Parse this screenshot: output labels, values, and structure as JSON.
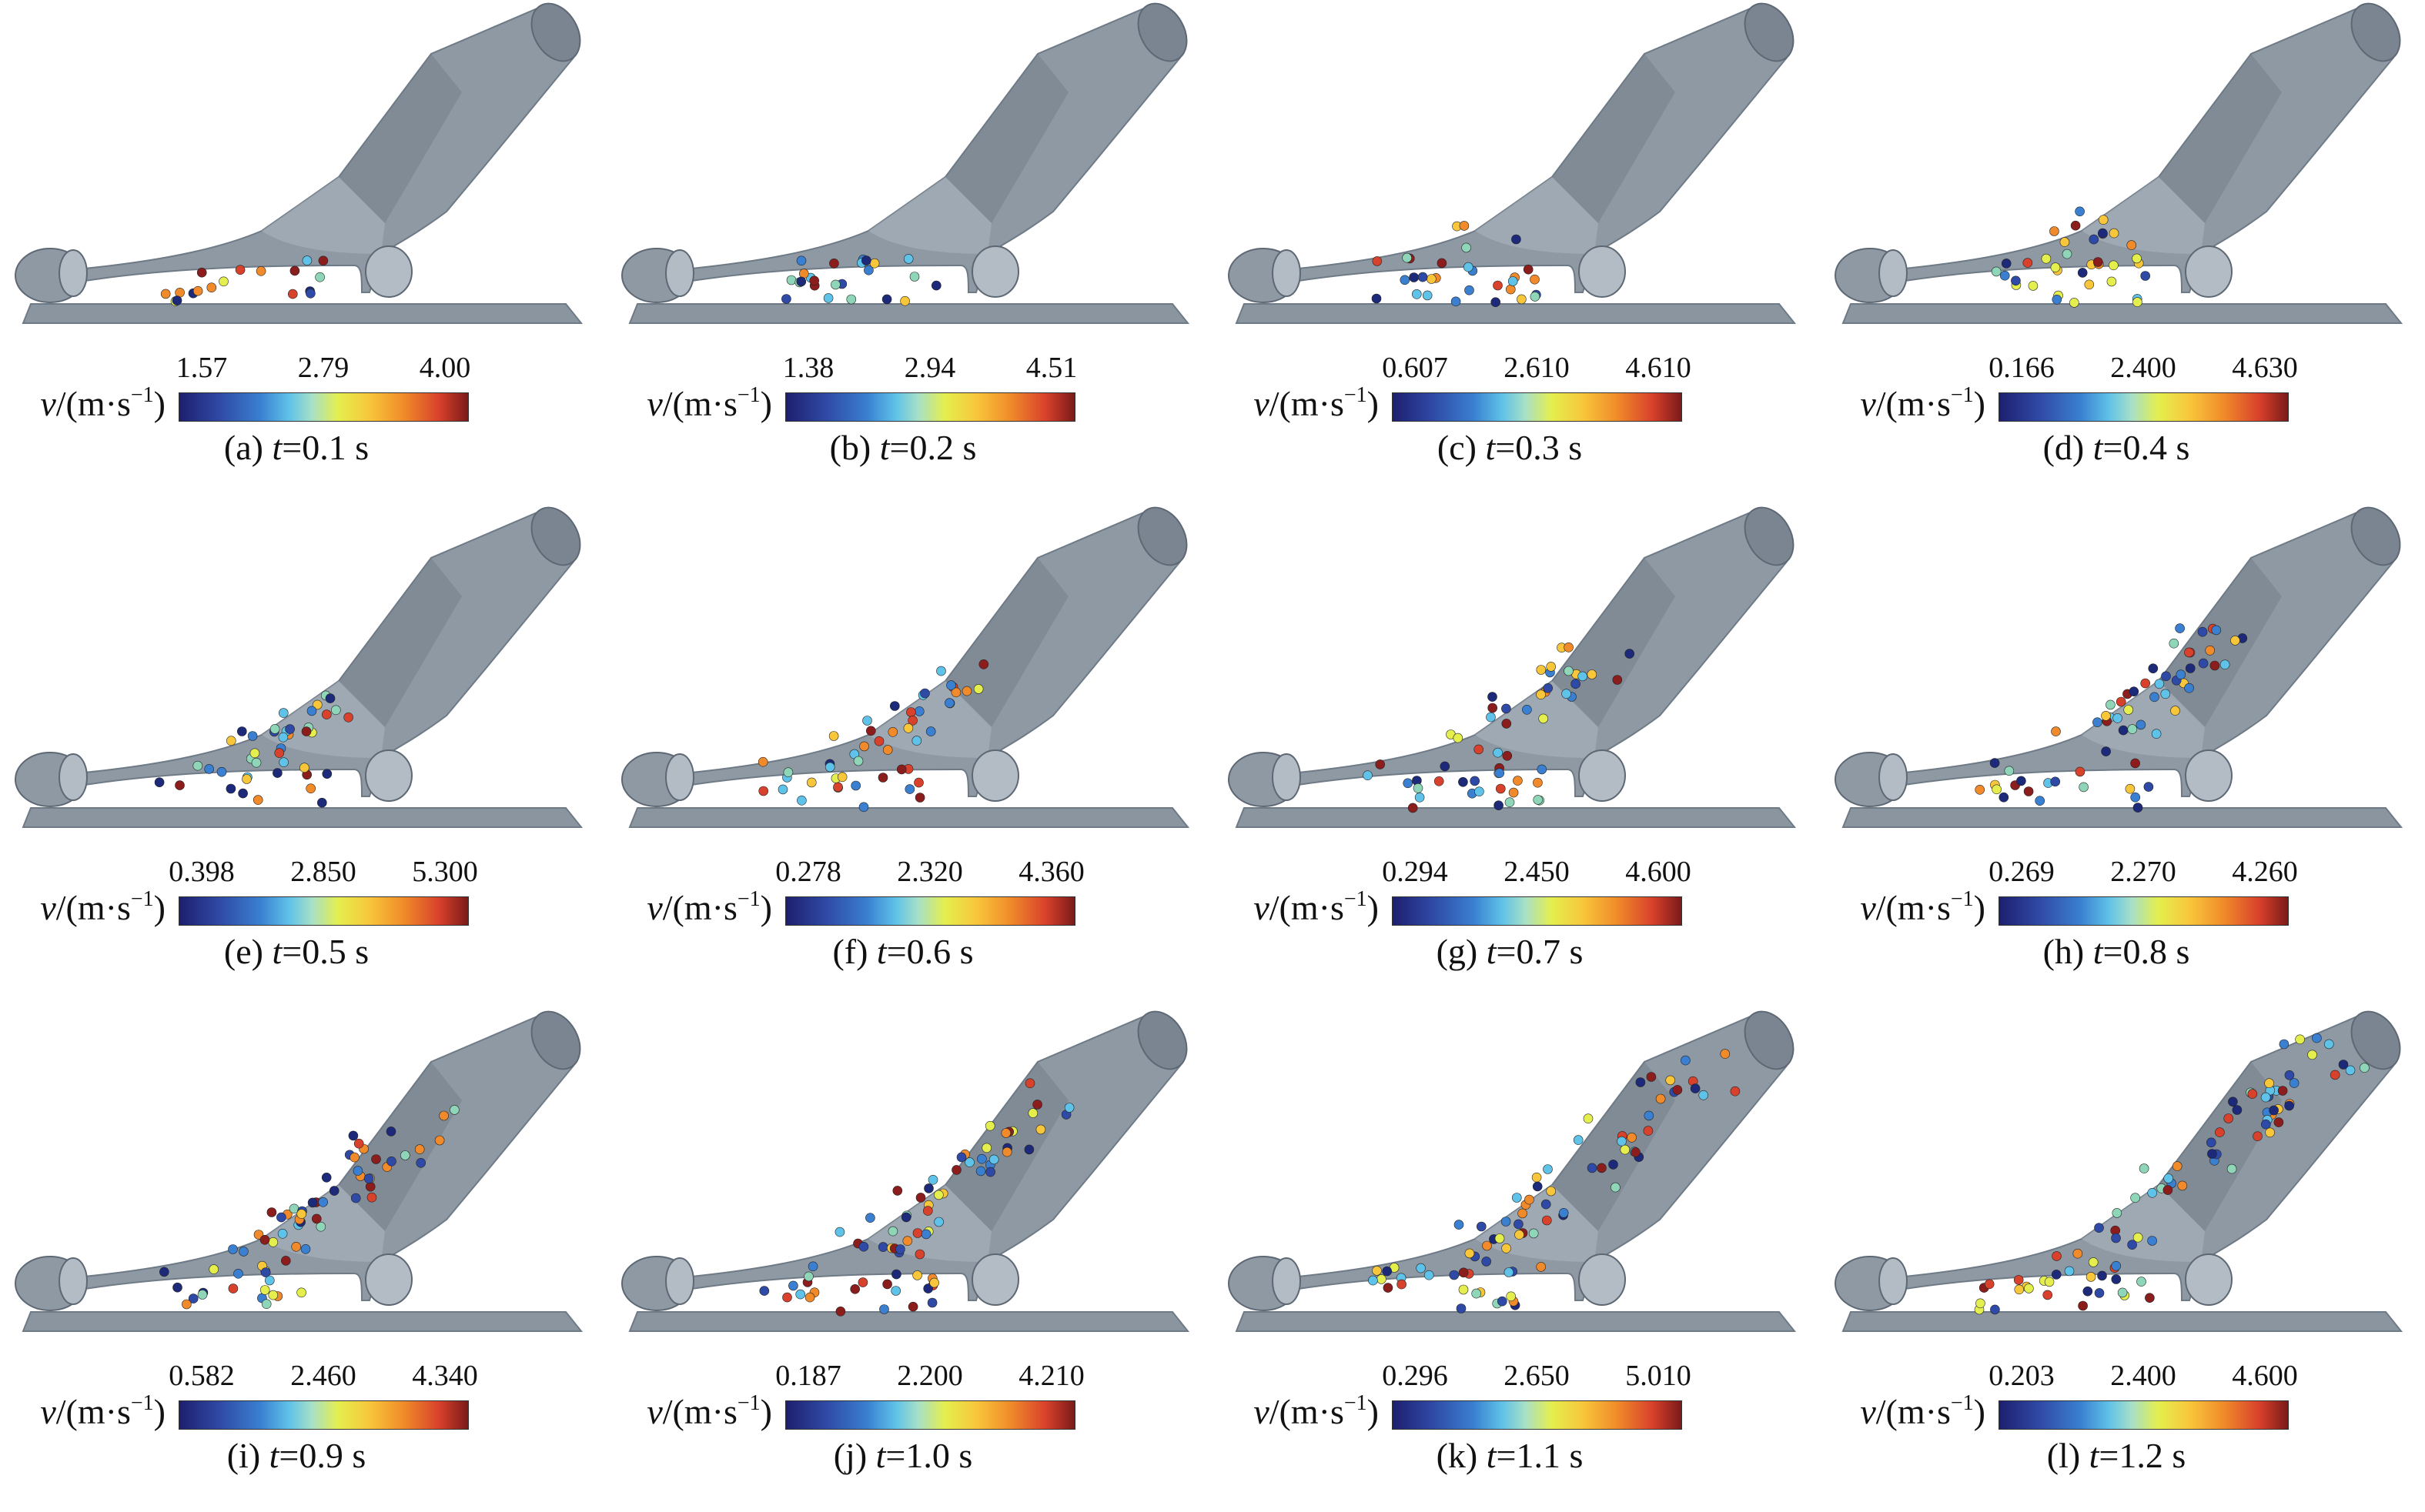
{
  "colorbar": {
    "variable": "v",
    "unit_open": "/(m·s",
    "unit_exp": "−1",
    "unit_close": ")",
    "gradient_colors": [
      "#1d1f6e",
      "#2f4aa6",
      "#3a7fd0",
      "#5fc2e8",
      "#a7e0c6",
      "#e4ef4e",
      "#f8c63a",
      "#f08a2a",
      "#d8412b",
      "#7a1a1a"
    ]
  },
  "panels": [
    {
      "letter": "(a)",
      "t_value": "=0.1 s",
      "ticks": [
        "1.57",
        "2.79",
        "4.00"
      ]
    },
    {
      "letter": "(b)",
      "t_value": "=0.2 s",
      "ticks": [
        "1.38",
        "2.94",
        "4.51"
      ]
    },
    {
      "letter": "(c)",
      "t_value": "=0.3 s",
      "ticks": [
        "0.607",
        "2.610",
        "4.610"
      ]
    },
    {
      "letter": "(d)",
      "t_value": "=0.4 s",
      "ticks": [
        "0.166",
        "2.400",
        "4.630"
      ]
    },
    {
      "letter": "(e)",
      "t_value": "=0.5 s",
      "ticks": [
        "0.398",
        "2.850",
        "5.300"
      ]
    },
    {
      "letter": "(f)",
      "t_value": "=0.6 s",
      "ticks": [
        "0.278",
        "2.320",
        "4.360"
      ]
    },
    {
      "letter": "(g)",
      "t_value": "=0.7 s",
      "ticks": [
        "0.294",
        "2.450",
        "4.600"
      ]
    },
    {
      "letter": "(h)",
      "t_value": "=0.8 s",
      "ticks": [
        "0.269",
        "2.270",
        "4.260"
      ]
    },
    {
      "letter": "(i)",
      "t_value": "=0.9 s",
      "ticks": [
        "0.582",
        "2.460",
        "4.340"
      ]
    },
    {
      "letter": "(j)",
      "t_value": "=1.0 s",
      "ticks": [
        "0.187",
        "2.200",
        "4.210"
      ]
    },
    {
      "letter": "(k)",
      "t_value": "=1.1 s",
      "ticks": [
        "0.296",
        "2.650",
        "5.010"
      ]
    },
    {
      "letter": "(l)",
      "t_value": "=1.2 s",
      "ticks": [
        "0.203",
        "2.400",
        "4.600"
      ]
    }
  ],
  "colors": {
    "geometry": "#8e99a4",
    "geometry_dark": "#6e7a86",
    "geometry_light": "#b3bcc5",
    "ground": "#8a95a0"
  }
}
